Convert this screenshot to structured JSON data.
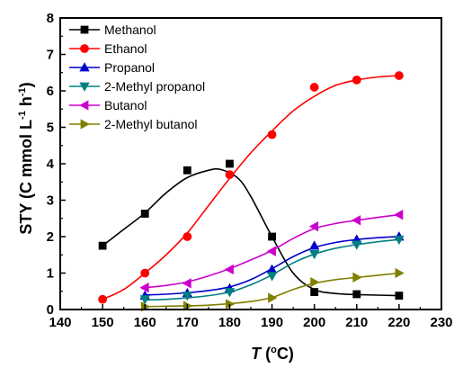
{
  "chart_data": {
    "type": "line",
    "xlabel_main": "T",
    "xlabel_unit_open": " (",
    "xlabel_unit_sup": "o",
    "xlabel_unit_close": "C)",
    "ylabel_main": "STY (C mmol L",
    "ylabel_sup1": "-1",
    "ylabel_mid": " h",
    "ylabel_sup2": "-1",
    "ylabel_close": ")",
    "xlim": [
      140,
      230
    ],
    "ylim": [
      0,
      8
    ],
    "xticks": [
      140,
      150,
      160,
      170,
      180,
      190,
      200,
      210,
      220,
      230
    ],
    "yticks": [
      0,
      1,
      2,
      3,
      4,
      5,
      6,
      7,
      8
    ],
    "legend_position": "top-left",
    "series": [
      {
        "name": "Methanol",
        "color": "#000000",
        "marker": "square",
        "x": [
          150,
          160,
          170,
          180,
          190,
          200,
          210,
          220
        ],
        "y": [
          1.75,
          2.63,
          3.82,
          4.0,
          2.0,
          0.48,
          0.42,
          0.38
        ],
        "curve": [
          [
            150,
            1.75
          ],
          [
            155,
            2.2
          ],
          [
            160,
            2.65
          ],
          [
            165,
            3.2
          ],
          [
            170,
            3.62
          ],
          [
            175,
            3.82
          ],
          [
            178,
            3.84
          ],
          [
            182,
            3.6
          ],
          [
            185,
            3.1
          ],
          [
            190,
            2.0
          ],
          [
            195,
            1.0
          ],
          [
            200,
            0.55
          ],
          [
            205,
            0.44
          ],
          [
            210,
            0.41
          ],
          [
            220,
            0.38
          ]
        ]
      },
      {
        "name": "Ethanol",
        "color": "#ff0000",
        "marker": "circle",
        "x": [
          150,
          160,
          170,
          180,
          190,
          200,
          210,
          220
        ],
        "y": [
          0.28,
          1.0,
          2.0,
          3.7,
          4.8,
          6.1,
          6.3,
          6.42
        ],
        "curve": [
          [
            150,
            0.28
          ],
          [
            155,
            0.55
          ],
          [
            160,
            1.0
          ],
          [
            165,
            1.5
          ],
          [
            170,
            2.1
          ],
          [
            175,
            2.85
          ],
          [
            180,
            3.6
          ],
          [
            185,
            4.3
          ],
          [
            190,
            4.9
          ],
          [
            195,
            5.45
          ],
          [
            200,
            5.85
          ],
          [
            205,
            6.15
          ],
          [
            210,
            6.3
          ],
          [
            215,
            6.38
          ],
          [
            220,
            6.42
          ]
        ]
      },
      {
        "name": "Propanol",
        "color": "#0000cc",
        "marker": "triangle-up",
        "x": [
          160,
          170,
          180,
          190,
          200,
          210,
          220
        ],
        "y": [
          0.38,
          0.45,
          0.58,
          1.1,
          1.75,
          1.92,
          2.0
        ],
        "curve": [
          [
            160,
            0.4
          ],
          [
            165,
            0.42
          ],
          [
            170,
            0.46
          ],
          [
            175,
            0.52
          ],
          [
            180,
            0.62
          ],
          [
            185,
            0.82
          ],
          [
            190,
            1.12
          ],
          [
            195,
            1.45
          ],
          [
            200,
            1.7
          ],
          [
            205,
            1.84
          ],
          [
            210,
            1.92
          ],
          [
            215,
            1.97
          ],
          [
            220,
            2.0
          ]
        ]
      },
      {
        "name": "2-Methyl propanol",
        "color": "#008080",
        "marker": "triangle-down",
        "x": [
          160,
          170,
          180,
          190,
          200,
          210,
          220
        ],
        "y": [
          0.28,
          0.38,
          0.48,
          0.92,
          1.52,
          1.78,
          1.92
        ],
        "curve": [
          [
            160,
            0.26
          ],
          [
            165,
            0.28
          ],
          [
            170,
            0.32
          ],
          [
            175,
            0.38
          ],
          [
            180,
            0.48
          ],
          [
            185,
            0.68
          ],
          [
            190,
            0.95
          ],
          [
            195,
            1.28
          ],
          [
            200,
            1.52
          ],
          [
            205,
            1.68
          ],
          [
            210,
            1.78
          ],
          [
            215,
            1.86
          ],
          [
            220,
            1.92
          ]
        ]
      },
      {
        "name": "Butanol",
        "color": "#cc00cc",
        "marker": "triangle-left",
        "x": [
          160,
          170,
          180,
          190,
          200,
          210,
          220
        ],
        "y": [
          0.6,
          0.72,
          1.1,
          1.6,
          2.28,
          2.45,
          2.6
        ],
        "curve": [
          [
            160,
            0.6
          ],
          [
            165,
            0.66
          ],
          [
            170,
            0.76
          ],
          [
            175,
            0.92
          ],
          [
            180,
            1.12
          ],
          [
            185,
            1.36
          ],
          [
            190,
            1.62
          ],
          [
            195,
            1.95
          ],
          [
            200,
            2.22
          ],
          [
            205,
            2.36
          ],
          [
            210,
            2.45
          ],
          [
            215,
            2.53
          ],
          [
            220,
            2.6
          ]
        ]
      },
      {
        "name": "2-Methyl butanol",
        "color": "#808000",
        "marker": "triangle-right",
        "x": [
          160,
          170,
          180,
          190,
          200,
          210,
          220
        ],
        "y": [
          0.08,
          0.1,
          0.15,
          0.32,
          0.75,
          0.88,
          1.0
        ],
        "curve": [
          [
            160,
            0.08
          ],
          [
            165,
            0.09
          ],
          [
            170,
            0.1
          ],
          [
            175,
            0.12
          ],
          [
            180,
            0.16
          ],
          [
            185,
            0.22
          ],
          [
            190,
            0.33
          ],
          [
            195,
            0.55
          ],
          [
            200,
            0.72
          ],
          [
            205,
            0.82
          ],
          [
            210,
            0.88
          ],
          [
            215,
            0.94
          ],
          [
            220,
            1.0
          ]
        ]
      }
    ]
  }
}
